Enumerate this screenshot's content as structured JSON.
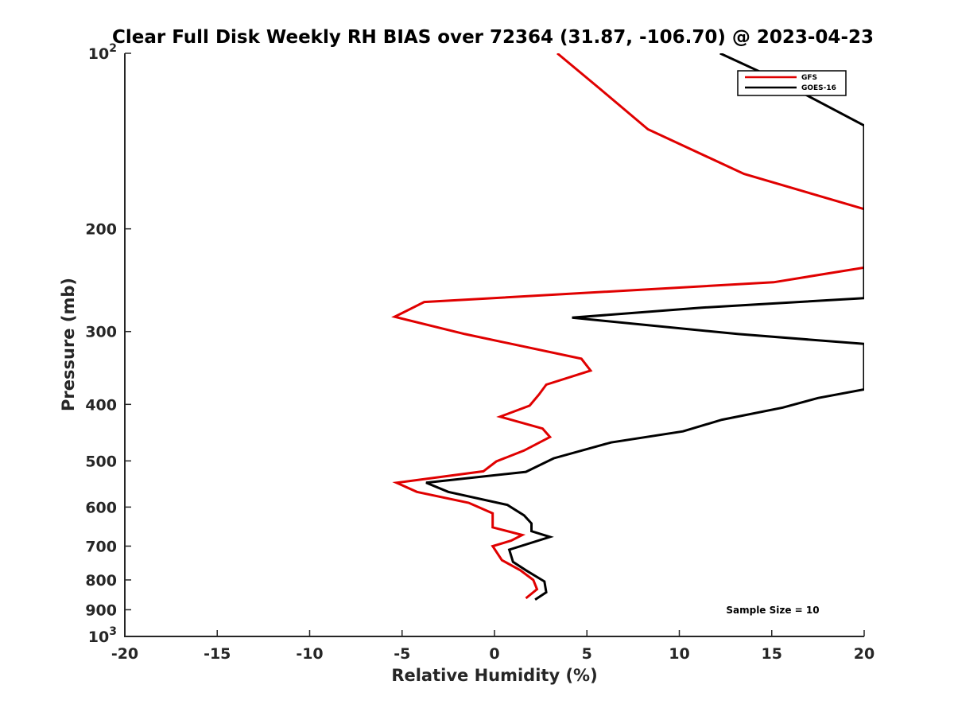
{
  "chart_data": {
    "type": "line",
    "title": "Clear Full Disk Weekly RH BIAS over 72364 (31.87, -106.70) @ 2023-04-23",
    "xlabel": "Relative Humidity (%)",
    "ylabel": "Pressure (mb)",
    "xlim": [
      -20,
      20
    ],
    "ylim": [
      100,
      1000
    ],
    "y_scale": "log",
    "y_reversed": true,
    "x_ticks": [
      -20,
      -15,
      -10,
      -5,
      0,
      5,
      10,
      15,
      20
    ],
    "x_tick_labels": [
      "-20",
      "-15",
      "-10",
      "-5",
      "0",
      "5",
      "10",
      "15",
      "20"
    ],
    "y_ticks": [
      100,
      200,
      300,
      400,
      500,
      600,
      700,
      800,
      900,
      1000
    ],
    "y_tick_labels": [
      {
        "base": "10",
        "exp": "2"
      },
      {
        "base": "200",
        "exp": ""
      },
      {
        "base": "300",
        "exp": ""
      },
      {
        "base": "400",
        "exp": ""
      },
      {
        "base": "500",
        "exp": ""
      },
      {
        "base": "600",
        "exp": ""
      },
      {
        "base": "700",
        "exp": ""
      },
      {
        "base": "800",
        "exp": ""
      },
      {
        "base": "900",
        "exp": ""
      },
      {
        "base": "10",
        "exp": "3"
      }
    ],
    "grid": false,
    "legend_position": "top-right",
    "annotation": "Sample Size = 10",
    "series": [
      {
        "name": "GFS",
        "color": "#e00000",
        "points": [
          [
            3.4,
            100
          ],
          [
            5.7,
            115
          ],
          [
            8.3,
            135
          ],
          [
            13.5,
            161
          ],
          [
            20,
            185
          ],
          [
            20,
            233
          ],
          [
            15.1,
            247
          ],
          [
            -3.8,
            267
          ],
          [
            -5.4,
            283
          ],
          [
            -1.6,
            303
          ],
          [
            4.7,
            334
          ],
          [
            5.2,
            350
          ],
          [
            2.8,
            370
          ],
          [
            2.4,
            385
          ],
          [
            1.9,
            402
          ],
          [
            0.3,
            420
          ],
          [
            2.6,
            440
          ],
          [
            3.0,
            455
          ],
          [
            1.6,
            480
          ],
          [
            0.1,
            501
          ],
          [
            -0.6,
            521
          ],
          [
            -5.3,
            545
          ],
          [
            -4.2,
            565
          ],
          [
            -1.4,
            590
          ],
          [
            -0.1,
            615
          ],
          [
            -0.1,
            650
          ],
          [
            1.5,
            670
          ],
          [
            0.9,
            685
          ],
          [
            -0.1,
            700
          ],
          [
            0.4,
            740
          ],
          [
            1.4,
            770
          ],
          [
            2.1,
            800
          ],
          [
            2.3,
            830
          ],
          [
            1.7,
            860
          ]
        ]
      },
      {
        "name": "GOES-16",
        "color": "#000000",
        "points": [
          [
            12.2,
            100
          ],
          [
            15.3,
            111
          ],
          [
            20,
            133
          ],
          [
            20,
            263
          ],
          [
            11.2,
            273
          ],
          [
            4.2,
            284
          ],
          [
            13.2,
            303
          ],
          [
            20,
            315
          ],
          [
            20,
            377
          ],
          [
            17.5,
            390
          ],
          [
            15.6,
            405
          ],
          [
            12.3,
            425
          ],
          [
            10.2,
            445
          ],
          [
            6.3,
            465
          ],
          [
            3.2,
            495
          ],
          [
            1.7,
            522
          ],
          [
            -3.7,
            545
          ],
          [
            -2.5,
            565
          ],
          [
            0.7,
            595
          ],
          [
            1.6,
            620
          ],
          [
            2.0,
            640
          ],
          [
            2.0,
            660
          ],
          [
            3.0,
            675
          ],
          [
            0.8,
            710
          ],
          [
            1.0,
            745
          ],
          [
            1.7,
            770
          ],
          [
            2.7,
            805
          ],
          [
            2.8,
            840
          ],
          [
            2.2,
            865
          ]
        ]
      }
    ]
  }
}
